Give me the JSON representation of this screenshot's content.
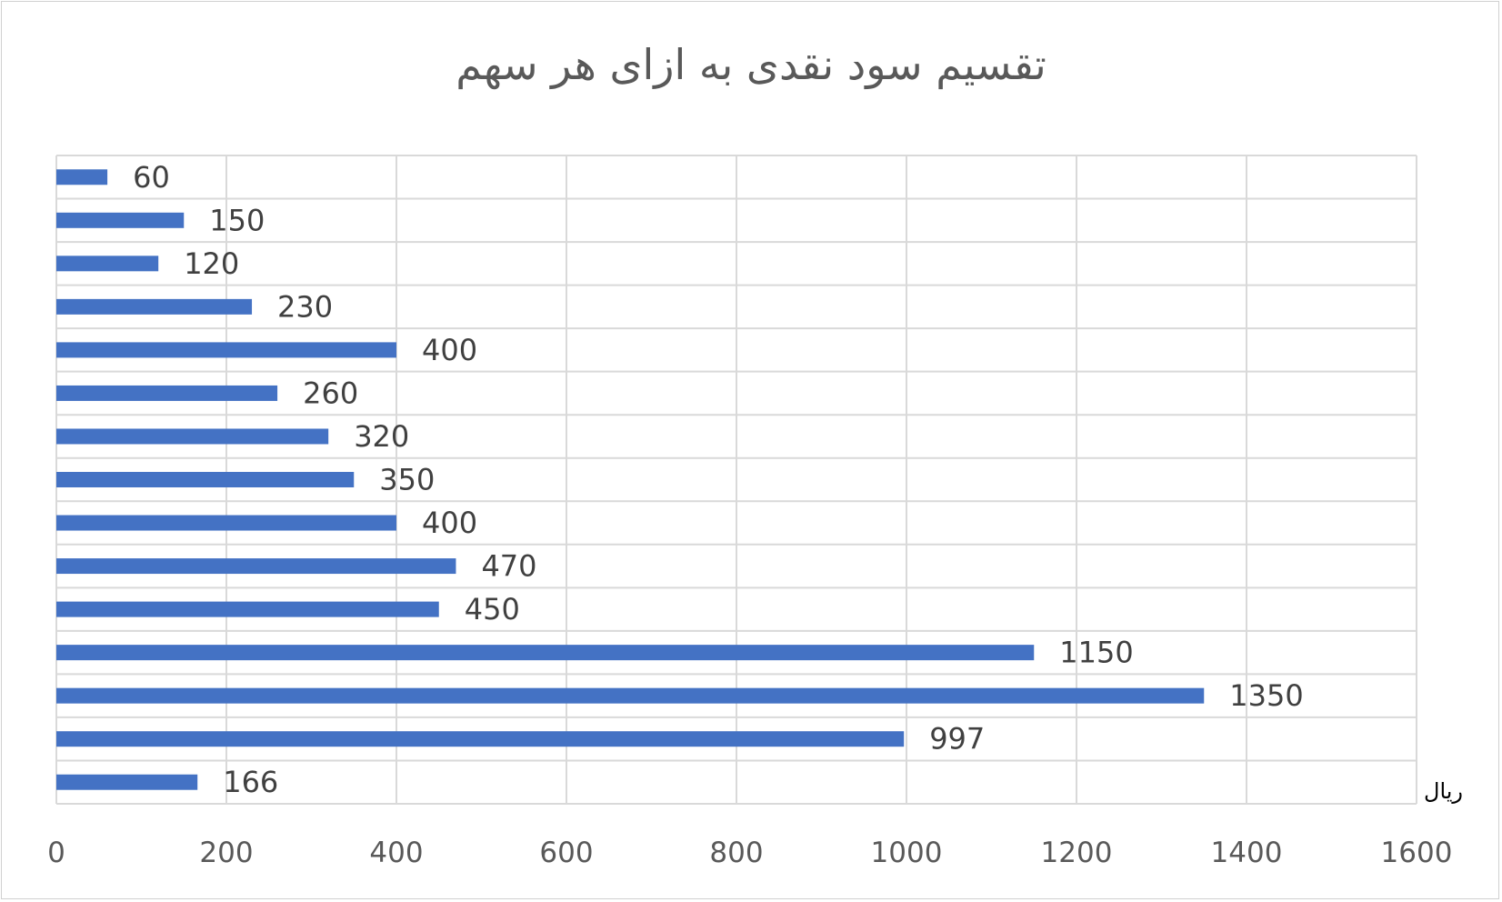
{
  "chart_data": {
    "type": "bar",
    "orientation": "horizontal",
    "title": "تقسیم سود نقدی به ازای هر سهم",
    "unit_label": "ریال",
    "xlim": [
      0,
      1600
    ],
    "x_ticks": [
      0,
      200,
      400,
      600,
      800,
      1000,
      1200,
      1400,
      1600
    ],
    "grid": true,
    "bar_color": "#4472C4",
    "values": [
      60,
      150,
      120,
      230,
      400,
      260,
      320,
      350,
      400,
      470,
      450,
      1150,
      1350,
      997,
      166
    ],
    "data_labels": [
      "60",
      "150",
      "120",
      "230",
      "400",
      "260",
      "320",
      "350",
      "400",
      "470",
      "450",
      "1150",
      "1350",
      "997",
      "166"
    ]
  }
}
